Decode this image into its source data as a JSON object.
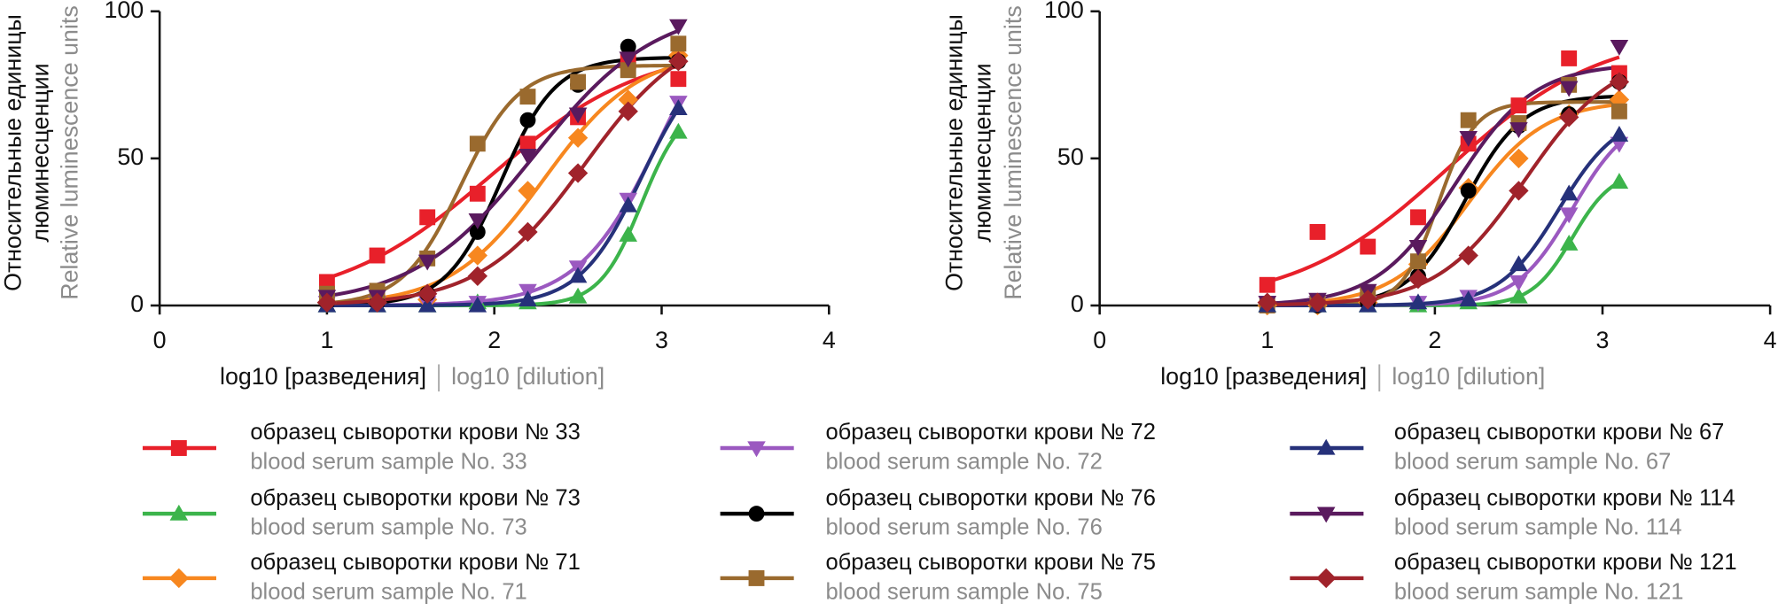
{
  "chart_data": [
    {
      "type": "scatter",
      "xlabel": "log10 [разведения]",
      "xlabel_en": "log10 [dilution]",
      "ylabel": [
        "Относительные единицы",
        "люминесценции"
      ],
      "ylabel_en": "Relative luminescence units",
      "xlim": [
        0,
        4
      ],
      "ylim": [
        0,
        100
      ],
      "xticks": [
        0,
        1,
        2,
        3,
        4
      ],
      "yticks": [
        0,
        50,
        100
      ],
      "x": [
        1,
        1.3,
        1.6,
        1.9,
        2.2,
        2.5,
        2.8,
        3.1
      ],
      "series": [
        {
          "name": "образец сыворотки крови № 33",
          "name_en": "blood serum sample No. 33",
          "color": "#e8202a",
          "marker": "square",
          "values": [
            8,
            17,
            30,
            38,
            55,
            64,
            83,
            77
          ]
        },
        {
          "name": "образец сыворотки крови № 73",
          "name_en": "blood serum sample No. 73",
          "color": "#3cb44b",
          "marker": "triangle",
          "values": [
            0,
            0,
            0,
            1,
            1,
            3,
            24,
            59
          ]
        },
        {
          "name": "образец сыворотки крови № 71",
          "name_en": "blood serum sample No. 71",
          "color": "#f7871f",
          "marker": "diamond",
          "values": [
            1,
            1,
            2,
            17,
            39,
            57,
            70,
            85
          ]
        },
        {
          "name": "образец сыворотки крови № 72",
          "name_en": "blood serum sample No. 72",
          "color": "#9b59c0",
          "marker": "triangle-down",
          "values": [
            1,
            1,
            1,
            1,
            5,
            13,
            36,
            69
          ]
        },
        {
          "name": "образец сыворотки крови № 76",
          "name_en": "blood serum sample No. 76",
          "color": "#000000",
          "marker": "circle",
          "values": [
            1,
            1,
            4,
            25,
            63,
            75,
            88,
            83
          ]
        },
        {
          "name": "образец сыворотки крови № 75",
          "name_en": "blood serum sample No. 75",
          "color": "#9a6a2e",
          "marker": "square",
          "values": [
            4,
            5,
            16,
            55,
            71,
            76,
            80,
            89
          ]
        },
        {
          "name": "образец сыворотки крови № 67",
          "name_en": "blood serum sample No. 67",
          "color": "#26317a",
          "marker": "triangle",
          "values": [
            0,
            0,
            0,
            0,
            2,
            10,
            34,
            67
          ]
        },
        {
          "name": "образец сыворотки крови № 114",
          "name_en": "blood serum sample No. 114",
          "color": "#5a1a5e",
          "marker": "triangle-down",
          "values": [
            3,
            3,
            15,
            29,
            51,
            65,
            84,
            95
          ]
        },
        {
          "name": "образец сыворотки крови № 121",
          "name_en": "blood serum sample No. 121",
          "color": "#a0232b",
          "marker": "diamond",
          "values": [
            1,
            1,
            4,
            10,
            25,
            45,
            66,
            83
          ]
        }
      ]
    },
    {
      "type": "scatter",
      "xlabel": "log10 [разведения]",
      "xlabel_en": "log10 [dilution]",
      "ylabel": [
        "Относительные единицы",
        "люминесценции"
      ],
      "ylabel_en": "Relative luminescence units",
      "xlim": [
        0,
        4
      ],
      "ylim": [
        0,
        100
      ],
      "xticks": [
        0,
        1,
        2,
        3,
        4
      ],
      "yticks": [
        0,
        50,
        100
      ],
      "x": [
        1,
        1.3,
        1.6,
        1.9,
        2.2,
        2.5,
        2.8,
        3.1
      ],
      "series": [
        {
          "color": "#e8202a",
          "marker": "square",
          "values": [
            7,
            25,
            20,
            30,
            55,
            68,
            84,
            79
          ]
        },
        {
          "color": "#3cb44b",
          "marker": "triangle",
          "values": [
            0,
            0,
            0,
            0,
            1,
            3,
            21,
            42
          ]
        },
        {
          "color": "#f7871f",
          "marker": "diamond",
          "values": [
            0,
            0,
            1,
            14,
            40,
            50,
            65,
            70
          ]
        },
        {
          "color": "#9b59c0",
          "marker": "triangle-down",
          "values": [
            1,
            1,
            1,
            1,
            3,
            8,
            31,
            55
          ]
        },
        {
          "color": "#000000",
          "marker": "circle",
          "values": [
            0,
            0,
            1,
            10,
            39,
            61,
            65,
            76
          ]
        },
        {
          "color": "#9a6a2e",
          "marker": "square",
          "values": [
            0,
            1,
            4,
            15,
            63,
            62,
            75,
            66
          ]
        },
        {
          "color": "#26317a",
          "marker": "triangle",
          "values": [
            0,
            0,
            0,
            1,
            2,
            14,
            38,
            58
          ]
        },
        {
          "color": "#5a1a5e",
          "marker": "triangle-down",
          "values": [
            1,
            2,
            5,
            20,
            57,
            60,
            74,
            88
          ]
        },
        {
          "color": "#a0232b",
          "marker": "diamond",
          "values": [
            1,
            1,
            2,
            9,
            17,
            39,
            64,
            76
          ]
        }
      ]
    }
  ]
}
